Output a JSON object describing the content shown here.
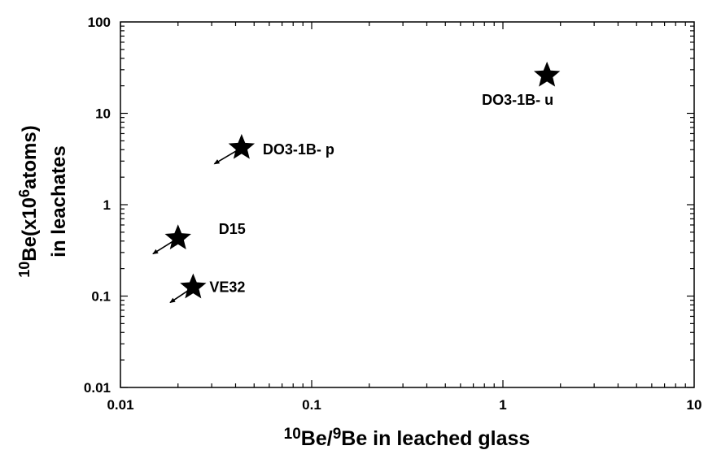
{
  "chart_data": {
    "type": "scatter",
    "title": "",
    "xlabel": {
      "sup1": "10",
      "mid1": "Be/",
      "sup2": "9",
      "rest": "Be in leached glass"
    },
    "ylabel": {
      "sup1": "10",
      "mid": "Be(x10",
      "sup2": "6",
      "rest": "atoms)",
      "line2": "in leachates"
    },
    "x_scale": "log",
    "y_scale": "log",
    "xlim": [
      0.01,
      10
    ],
    "ylim": [
      0.01,
      100
    ],
    "x_ticks": [
      0.01,
      0.1,
      1,
      10
    ],
    "x_tick_labels": [
      "0.01",
      "0.1",
      "1",
      "10"
    ],
    "y_ticks": [
      0.01,
      0.1,
      1,
      10,
      100
    ],
    "y_tick_labels": [
      "0.01",
      "0.1",
      "1",
      "10",
      "100"
    ],
    "grid": false,
    "marker": "star",
    "points": [
      {
        "label": "DO3-1B- u",
        "x": 1.7,
        "y": 26,
        "arrow_to": null
      },
      {
        "label": "DO3-1B- p",
        "x": 0.043,
        "y": 4.2,
        "arrow_to": [
          0.031,
          2.8
        ]
      },
      {
        "label": "D15",
        "x": 0.02,
        "y": 0.43,
        "arrow_to": [
          0.0148,
          0.29
        ]
      },
      {
        "label": "VE32",
        "x": 0.024,
        "y": 0.125,
        "arrow_to": [
          0.0182,
          0.085
        ]
      }
    ]
  }
}
